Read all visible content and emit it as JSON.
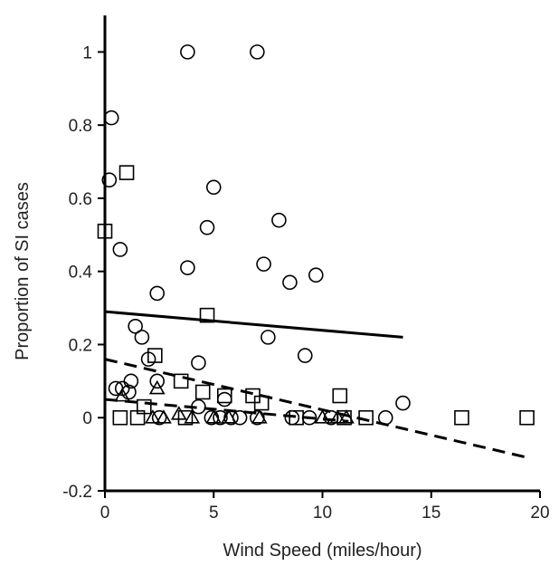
{
  "chart_data": {
    "type": "scatter",
    "title": "",
    "xlabel": "Wind Speed (miles/hour)",
    "ylabel": "Proportion of SI cases",
    "xlim": [
      0,
      20
    ],
    "ylim": [
      -0.2,
      1.1
    ],
    "xticks": [
      0,
      5,
      10,
      15,
      20
    ],
    "yticks": [
      -0.2,
      0,
      0.2,
      0.4,
      0.6,
      0.8,
      1
    ],
    "x_tick_labels": [
      "0",
      "5",
      "10",
      "15",
      "20"
    ],
    "y_tick_labels": [
      "-0.2",
      "0",
      "0.2",
      "0.4",
      "0.6",
      "0.8",
      "1"
    ],
    "grid": false,
    "series": [
      {
        "marker": "circle",
        "points": [
          [
            3.8,
            1.0
          ],
          [
            7.0,
            1.0
          ],
          [
            0.3,
            0.82
          ],
          [
            0.2,
            0.65
          ],
          [
            5.0,
            0.63
          ],
          [
            0.7,
            0.46
          ],
          [
            4.7,
            0.52
          ],
          [
            8.0,
            0.54
          ],
          [
            3.8,
            0.41
          ],
          [
            7.3,
            0.42
          ],
          [
            8.5,
            0.37
          ],
          [
            9.7,
            0.39
          ],
          [
            2.4,
            0.34
          ],
          [
            1.4,
            0.25
          ],
          [
            1.7,
            0.22
          ],
          [
            7.5,
            0.22
          ],
          [
            9.2,
            0.17
          ],
          [
            2.0,
            0.16
          ],
          [
            4.3,
            0.15
          ],
          [
            2.4,
            0.1
          ],
          [
            1.2,
            0.1
          ],
          [
            0.5,
            0.08
          ],
          [
            0.8,
            0.08
          ],
          [
            1.1,
            0.07
          ],
          [
            5.5,
            0.05
          ],
          [
            13.7,
            0.04
          ],
          [
            4.3,
            0.03
          ],
          [
            2.5,
            0.0
          ],
          [
            4.9,
            0.0
          ],
          [
            5.3,
            0.0
          ],
          [
            5.8,
            0.0
          ],
          [
            6.2,
            0.0
          ],
          [
            7.0,
            0.0
          ],
          [
            8.6,
            0.0
          ],
          [
            9.4,
            0.0
          ],
          [
            10.4,
            0.0
          ],
          [
            12.9,
            0.0
          ]
        ],
        "trend": {
          "style": "solid",
          "x": [
            0.0,
            13.7
          ],
          "y": [
            0.29,
            0.22
          ]
        }
      },
      {
        "marker": "square",
        "points": [
          [
            1.0,
            0.67
          ],
          [
            0.0,
            0.51
          ],
          [
            4.7,
            0.28
          ],
          [
            2.3,
            0.17
          ],
          [
            3.5,
            0.1
          ],
          [
            4.5,
            0.07
          ],
          [
            1.8,
            0.03
          ],
          [
            5.5,
            0.06
          ],
          [
            6.8,
            0.06
          ],
          [
            7.2,
            0.04
          ],
          [
            10.8,
            0.06
          ],
          [
            0.7,
            0.0
          ],
          [
            1.5,
            0.0
          ],
          [
            3.7,
            0.0
          ],
          [
            8.8,
            0.0
          ],
          [
            11.0,
            0.0
          ],
          [
            12.0,
            0.0
          ],
          [
            16.4,
            0.0
          ],
          [
            19.4,
            0.0
          ]
        ],
        "trend": {
          "style": "dashed",
          "x": [
            0.0,
            19.5
          ],
          "y": [
            0.16,
            -0.11
          ]
        }
      },
      {
        "marker": "triangle",
        "points": [
          [
            2.4,
            0.08
          ],
          [
            0.8,
            0.06
          ],
          [
            2.2,
            0.0
          ],
          [
            2.7,
            0.0
          ],
          [
            3.4,
            0.01
          ],
          [
            4.0,
            0.0
          ],
          [
            5.0,
            0.0
          ],
          [
            5.7,
            0.0
          ],
          [
            7.1,
            0.0
          ],
          [
            10.0,
            0.0
          ],
          [
            10.7,
            0.0
          ],
          [
            11.1,
            0.0
          ]
        ],
        "trend": {
          "style": "dashed",
          "x": [
            0.0,
            11.2
          ],
          "y": [
            0.05,
            -0.01
          ]
        }
      }
    ]
  }
}
